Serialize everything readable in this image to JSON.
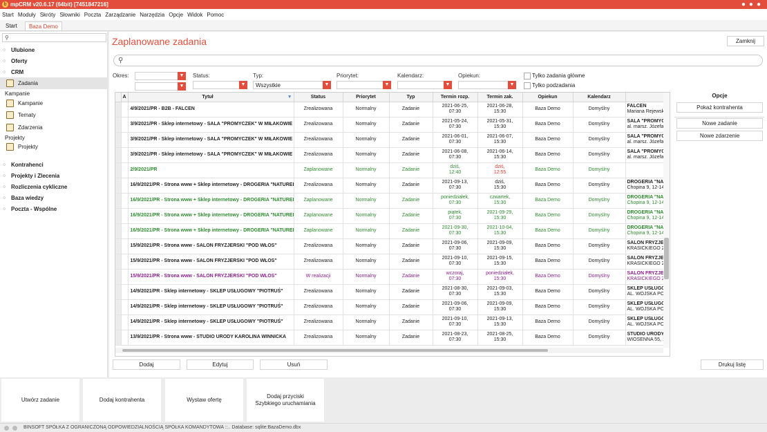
{
  "window": {
    "title": "mpCRM v20.6.17 (64bit) [7451847216]",
    "logo_glyph": "b"
  },
  "menu": [
    "Start",
    "Moduły",
    "Skróty",
    "Słowniki",
    "Poczta",
    "Zarządzanie",
    "Narzędzia",
    "Opcje",
    "Widok",
    "Pomoc"
  ],
  "tabs": [
    "Start",
    "Baza Demo"
  ],
  "sidebar": {
    "sections": {
      "ulubione": "Ulubione",
      "oferty": "Oferty",
      "crm": "CRM",
      "kontrahenci": "Kontrahenci",
      "projekty_zlecenia": "Projekty i Zlecenia",
      "rozliczenia": "Rozliczenia cykliczne",
      "baza_wiedzy": "Baza wiedzy",
      "poczta": "Poczta - Wspólne"
    },
    "crm_items": {
      "zadania": "Zadania",
      "kampanie_group": "Kampanie",
      "kampanie": "Kampanie",
      "tematy": "Tematy",
      "zdarzenia": "Zdarzenia",
      "projekty_group": "Projekty",
      "projekty": "Projekty"
    }
  },
  "main": {
    "title": "Zaplanowane zadania",
    "close_label": "Zamknij",
    "filters": {
      "okres": "Okres:",
      "status": "Status:",
      "typ": "Typ:",
      "typ_value": "Wszystkie",
      "priorytet": "Priorytet:",
      "kalendarz": "Kalendarz:",
      "opiekun": "Opiekun:",
      "only_main": "Tylko zadania główne",
      "only_sub": "Tylko podzadania"
    },
    "columns": {
      "a": "A",
      "tytul": "Tytuł",
      "status": "Status",
      "priorytet": "Priorytet",
      "typ": "Typ",
      "termin_rozp": "Termin rozp.",
      "termin_zak": "Termin zak.",
      "opiekun": "Opiekun",
      "kalendarz": "Kalendarz"
    },
    "rows": [
      {
        "tytul": "4/9/2021/PR - B2B - FALCEN",
        "status": "Zrealizowana",
        "priorytet": "Normalny",
        "typ": "Zadanie",
        "rozp1": "2021-06-25,",
        "rozp2": "07:30",
        "zak1": "2021-06-28,",
        "zak2": "15:30",
        "opiekun": "Baza Demo",
        "kalendarz": "Domyślny",
        "k1": "FALCEN",
        "k2": "Mariana Rejewski"
      },
      {
        "tytul": "3/9/2021/PR - Sklep internetowy - SALA \"PROMYCZEK\" W MIŁAKOWIE",
        "status": "Zrealizowana",
        "priorytet": "Normalny",
        "typ": "Zadanie",
        "rozp1": "2021-05-24,",
        "rozp2": "07:30",
        "zak1": "2021-05-31,",
        "zak2": "15:30",
        "opiekun": "Baza Demo",
        "kalendarz": "Domyślny",
        "k1": "SALA \"PROMYCZ",
        "k2": "al. marsz. Józefa P"
      },
      {
        "tytul": "3/9/2021/PR - Sklep internetowy - SALA \"PROMYCZEK\" W MIŁAKOWIE",
        "status": "Zrealizowana",
        "priorytet": "Normalny",
        "typ": "Zadanie",
        "rozp1": "2021-06-01,",
        "rozp2": "07:30",
        "zak1": "2021-06-07,",
        "zak2": "15:30",
        "opiekun": "Baza Demo",
        "kalendarz": "Domyślny",
        "k1": "SALA \"PROMYCZ",
        "k2": "al. marsz. Józefa P"
      },
      {
        "tytul": "3/9/2021/PR - Sklep internetowy - SALA \"PROMYCZEK\" W MIŁAKOWIE",
        "status": "Zrealizowana",
        "priorytet": "Normalny",
        "typ": "Zadanie",
        "rozp1": "2021-06-08,",
        "rozp2": "07:30",
        "zak1": "2021-06-14,",
        "zak2": "15:30",
        "opiekun": "Baza Demo",
        "kalendarz": "Domyślny",
        "k1": "SALA \"PROMYCZ",
        "k2": "al. marsz. Józefa P"
      },
      {
        "tytul": "2/9/2021/PR",
        "status": "Zaplanowane",
        "priorytet": "Normalny",
        "typ": "Zadanie",
        "rozp1": "dziś,",
        "rozp2": "12:40",
        "zak1": "dziś,",
        "zak2": "12:55",
        "opiekun": "Baza Demo",
        "kalendarz": "Domyślny",
        "k1": "",
        "k2": "",
        "color": "green",
        "zak_red": true
      },
      {
        "tytul": "16/9/2021/PR - Strona www + Sklep internetowy - DROGERIA \"NATUREL",
        "status": "Zrealizowana",
        "priorytet": "Normalny",
        "typ": "Zadanie",
        "rozp1": "2021-09-13,",
        "rozp2": "07:30",
        "zak1": "dziś,",
        "zak2": "15:30",
        "opiekun": "Baza Demo",
        "kalendarz": "Domyślny",
        "k1": "DROGERIA \"NAT",
        "k2": "Chopina 9, 12-140"
      },
      {
        "tytul": "16/9/2021/PR - Strona www + Sklep internetowy - DROGERIA \"NATUREL",
        "status": "Zaplanowane",
        "priorytet": "Normalny",
        "typ": "Zadanie",
        "rozp1": "poniedziałek,",
        "rozp2": "07:30",
        "zak1": "czwartek,",
        "zak2": "15:30",
        "opiekun": "Baza Demo",
        "kalendarz": "Domyślny",
        "k1": "DROGERIA \"NAT",
        "k2": "Chopina 9, 12-140",
        "color": "green"
      },
      {
        "tytul": "16/9/2021/PR - Strona www + Sklep internetowy - DROGERIA \"NATUREL",
        "status": "Zaplanowane",
        "priorytet": "Normalny",
        "typ": "Zadanie",
        "rozp1": "piątek,",
        "rozp2": "07:30",
        "zak1": "2021-09-29,",
        "zak2": "15:30",
        "opiekun": "Baza Demo",
        "kalendarz": "Domyślny",
        "k1": "DROGERIA \"NAT",
        "k2": "Chopina 9, 12-140",
        "color": "green"
      },
      {
        "tytul": "16/9/2021/PR - Strona www + Sklep internetowy - DROGERIA \"NATUREL",
        "status": "Zaplanowane",
        "priorytet": "Normalny",
        "typ": "Zadanie",
        "rozp1": "2021-09-30,",
        "rozp2": "07:30",
        "zak1": "2021-10-04,",
        "zak2": "15:30",
        "opiekun": "Baza Demo",
        "kalendarz": "Domyślny",
        "k1": "DROGERIA \"NAT",
        "k2": "Chopina 9, 12-140",
        "color": "green"
      },
      {
        "tytul": "15/9/2021/PR - Strona www - SALON FRYZJERSKI \"POD WŁOS\"",
        "status": "Zrealizowana",
        "priorytet": "Normalny",
        "typ": "Zadanie",
        "rozp1": "2021-09-06,",
        "rozp2": "07:30",
        "zak1": "2021-09-09,",
        "zak2": "15:30",
        "opiekun": "Baza Demo",
        "kalendarz": "Domyślny",
        "k1": "SALON FRYZJER",
        "k2": "KRASICKIEGO 2, 1"
      },
      {
        "tytul": "15/9/2021/PR - Strona www - SALON FRYZJERSKI \"POD WŁOS\"",
        "status": "Zrealizowana",
        "priorytet": "Normalny",
        "typ": "Zadanie",
        "rozp1": "2021-09-10,",
        "rozp2": "07:30",
        "zak1": "2021-09-15,",
        "zak2": "15:30",
        "opiekun": "Baza Demo",
        "kalendarz": "Domyślny",
        "k1": "SALON FRYZJER",
        "k2": "KRASICKIEGO 2, 1"
      },
      {
        "tytul": "15/9/2021/PR - Strona www - SALON FRYZJERSKI \"POD WŁOS\"",
        "status": "W realizacji",
        "priorytet": "Normalny",
        "typ": "Zadanie",
        "rozp1": "wczoraj,",
        "rozp2": "07:30",
        "zak1": "poniedziałek,",
        "zak2": "15:30",
        "opiekun": "Baza Demo",
        "kalendarz": "Domyślny",
        "k1": "SALON FRYZJER",
        "k2": "KRASICKIEGO 2, 1",
        "color": "purple"
      },
      {
        "tytul": "14/9/2021/PR - Sklep internetowy - SKLEP USŁUGOWY \"PIOTRUŚ\"",
        "status": "Zrealizowana",
        "priorytet": "Normalny",
        "typ": "Zadanie",
        "rozp1": "2021-08-30,",
        "rozp2": "07:30",
        "zak1": "2021-09-03,",
        "zak2": "15:30",
        "opiekun": "Baza Demo",
        "kalendarz": "Domyślny",
        "k1": "SKLEP USŁUGOW",
        "k2": "AL. WOJSKA POLS"
      },
      {
        "tytul": "14/9/2021/PR - Sklep internetowy - SKLEP USŁUGOWY \"PIOTRUŚ\"",
        "status": "Zrealizowana",
        "priorytet": "Normalny",
        "typ": "Zadanie",
        "rozp1": "2021-09-06,",
        "rozp2": "07:30",
        "zak1": "2021-09-09,",
        "zak2": "15:30",
        "opiekun": "Baza Demo",
        "kalendarz": "Domyślny",
        "k1": "SKLEP USŁUGOW",
        "k2": "AL. WOJSKA POLS"
      },
      {
        "tytul": "14/9/2021/PR - Sklep internetowy - SKLEP USŁUGOWY \"PIOTRUŚ\"",
        "status": "Zrealizowana",
        "priorytet": "Normalny",
        "typ": "Zadanie",
        "rozp1": "2021-09-10,",
        "rozp2": "07:30",
        "zak1": "2021-09-13,",
        "zak2": "15:30",
        "opiekun": "Baza Demo",
        "kalendarz": "Domyślny",
        "k1": "SKLEP USŁUGOW",
        "k2": "AL. WOJSKA POLS"
      },
      {
        "tytul": "13/9/2021/PR - Strona www - STUDIO URODY KAROLINA WINNICKA",
        "status": "Zrealizowana",
        "priorytet": "Normalny",
        "typ": "Zadanie",
        "rozp1": "2021-08-23,",
        "rozp2": "07:30",
        "zak1": "2021-08-25,",
        "zak2": "15:30",
        "opiekun": "Baza Demo",
        "kalendarz": "Domyślny",
        "k1": "STUDIO URODY",
        "k2": "WIOSENNA 55, 1"
      }
    ],
    "bottom_buttons": {
      "dodaj": "Dodaj",
      "edytuj": "Edytuj",
      "usun": "Usuń",
      "drukuj": "Drukuj listę"
    },
    "options": {
      "title": "Opcje",
      "pokaz": "Pokaż kontrahenta",
      "nowe_zadanie": "Nowe zadanie",
      "nowe_zdarzenie": "Nowe zdarzenie"
    }
  },
  "actions": {
    "utworz": "Utwórz zadanie",
    "dodaj_kontrahenta": "Dodaj kontrahenta",
    "wystaw": "Wystaw ofertę",
    "przyciski": "Dodaj przyciski\nSzybkiego uruchamiania"
  },
  "status_bar": "BINSOFT SPÓŁKA Z OGRANICZONĄ ODPOWIEDZIALNOŚCIĄ SPÓŁKA KOMANDYTOWA ::.. Database: sqlite:BazaDemo.dbx",
  "colors": {
    "accent": "#e24e3b",
    "planned": "#2e8b2e",
    "in_progress": "#8a1f8e",
    "overdue": "#d83b2a"
  }
}
